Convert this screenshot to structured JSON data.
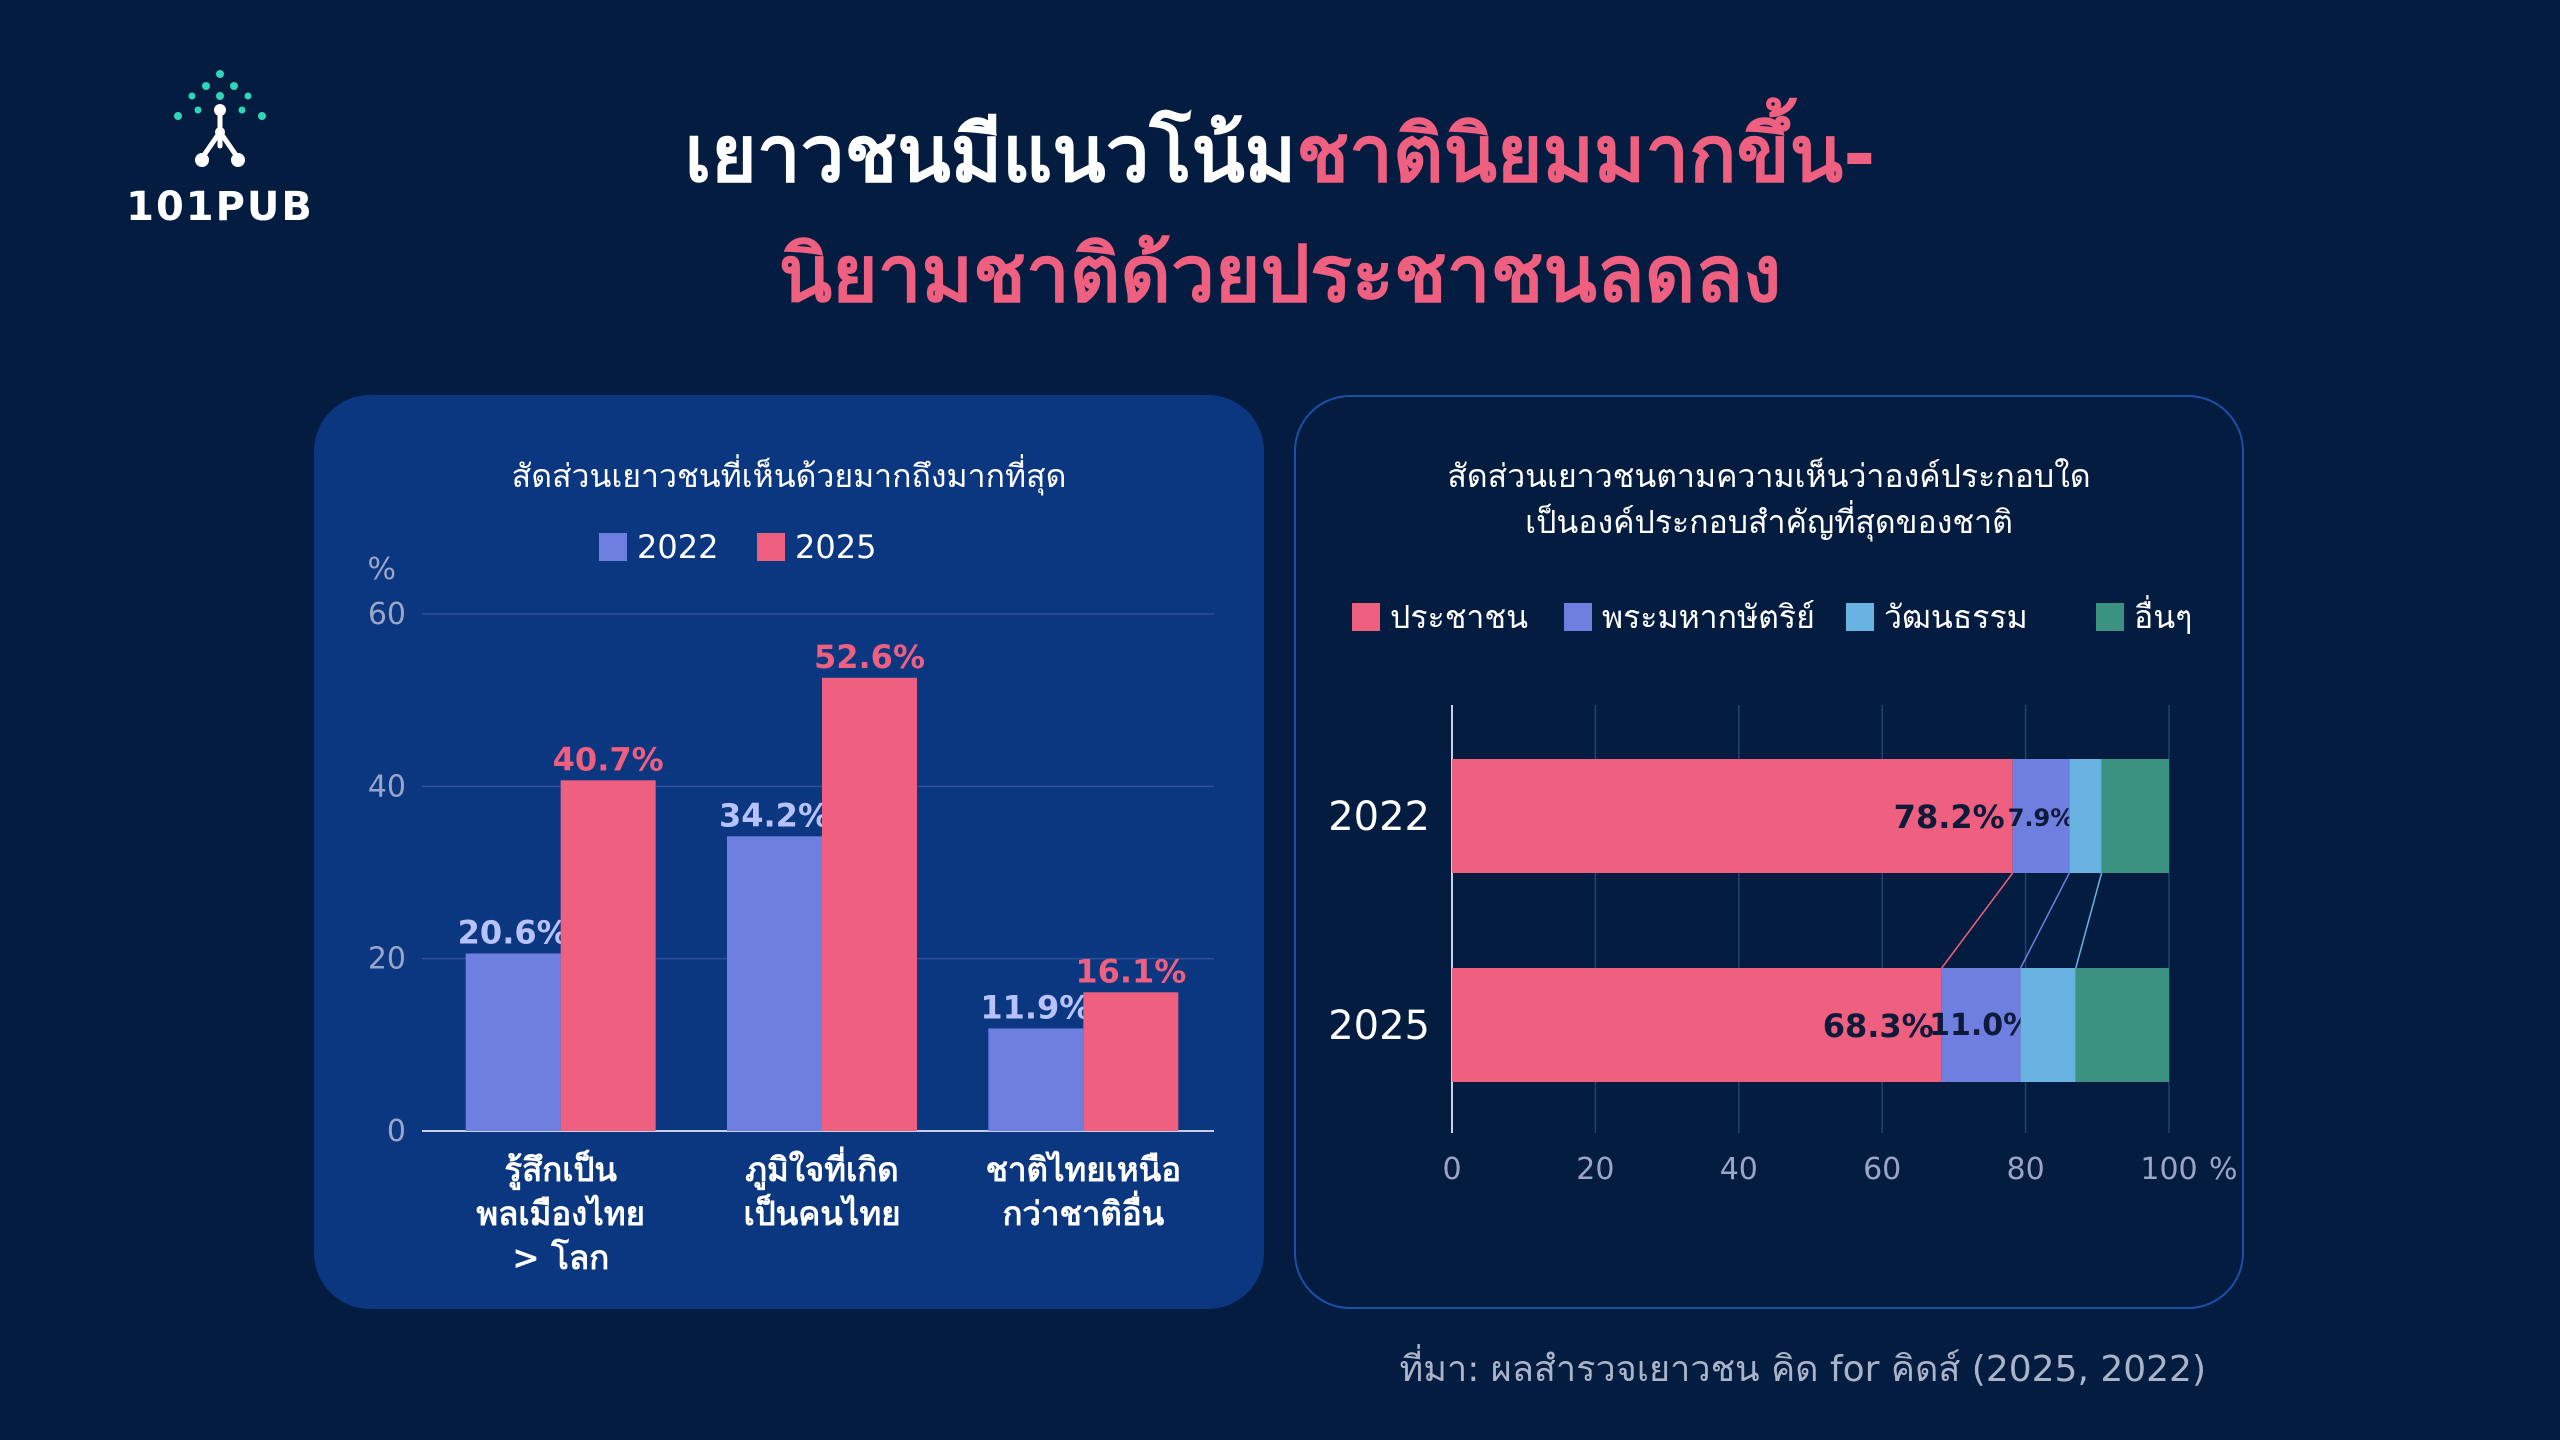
{
  "logo": {
    "text": "101PUB"
  },
  "title": {
    "line1_white": "เยาวชนมีแนวโน้ม",
    "line1_pink": "ชาตินิยมมากขึ้น-",
    "line2_pink": "นิยามชาติด้วยประชาชนลดลง"
  },
  "colors": {
    "background": "#041c40",
    "pink": "#ee5f80",
    "blue_2022": "#6e7fe0",
    "light_blue": "#69b3e3",
    "green": "#3c9280"
  },
  "source": "ที่มา: ผลสำรวจเยาวชน คิด for คิดส์ (2025, 2022)",
  "chart_data": [
    {
      "type": "bar",
      "title": "สัดส่วนเยาวชนที่เห็นด้วยมากถึงมากที่สุด",
      "ylabel": "%",
      "ylim": [
        0,
        60
      ],
      "yticks": [
        0,
        20,
        40,
        60
      ],
      "grid": true,
      "legend": "top-center",
      "categories": [
        [
          "รู้สึกเป็น",
          "พลเมืองไทย",
          "> โลก"
        ],
        [
          "ภูมิใจที่เกิด",
          "เป็นคนไทย"
        ],
        [
          "ชาติไทยเหนือ",
          "กว่าชาติอื่น"
        ]
      ],
      "series": [
        {
          "name": "2022",
          "values": [
            20.6,
            34.2,
            11.9
          ],
          "labels": [
            "20.6%",
            "34.2%",
            "11.9%"
          ],
          "color": "#6e7fe0",
          "label_color": "#b7c2ff"
        },
        {
          "name": "2025",
          "values": [
            40.7,
            52.6,
            16.1
          ],
          "labels": [
            "40.7%",
            "52.6%",
            "16.1%"
          ],
          "color": "#ee5f80",
          "label_color": "#ee5f80"
        }
      ]
    },
    {
      "type": "bar",
      "orientation": "horizontal",
      "stacked": true,
      "title": [
        "สัดส่วนเยาวชนตามความเห็นว่าองค์ประกอบใด",
        "เป็นองค์ประกอบสำคัญที่สุดของชาติ"
      ],
      "xlabel": "%",
      "xlim": [
        0,
        100
      ],
      "xticks": [
        0,
        20,
        40,
        60,
        80,
        100
      ],
      "grid": true,
      "legend": "top",
      "categories": [
        "2022",
        "2025"
      ],
      "series": [
        {
          "name": "ประชาชน",
          "values": [
            78.2,
            68.3
          ],
          "labels": [
            "78.2%",
            "68.3%"
          ],
          "color": "#ee5f80"
        },
        {
          "name": "พระมหากษัตริย์",
          "values": [
            7.9,
            11.0
          ],
          "labels": [
            "7.9%",
            "11.0%"
          ],
          "color": "#6e7fe0"
        },
        {
          "name": "วัฒนธรรม",
          "values": [
            4.5,
            7.7
          ],
          "labels": [
            "",
            ""
          ],
          "color": "#69b3e3"
        },
        {
          "name": "อื่นๆ",
          "values": [
            9.4,
            13.0
          ],
          "labels": [
            "",
            ""
          ],
          "color": "#3c9280"
        }
      ]
    }
  ]
}
